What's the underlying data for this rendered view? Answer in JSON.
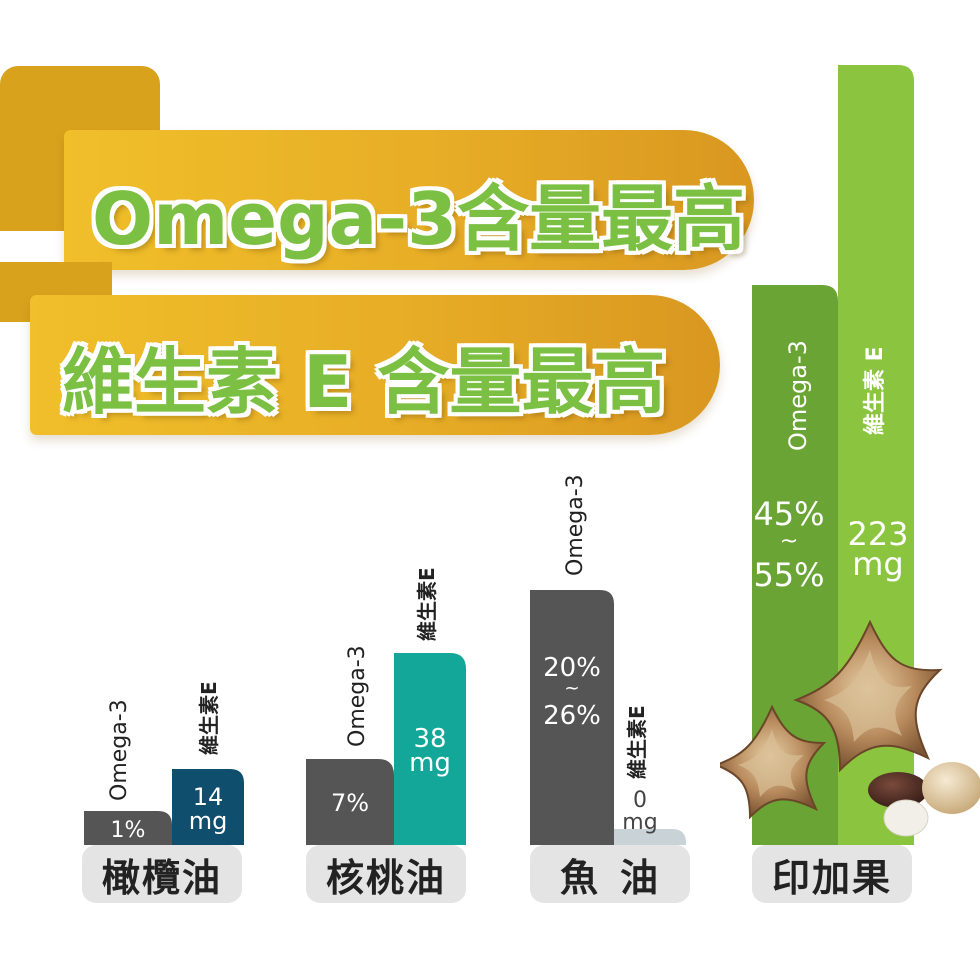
{
  "headline": {
    "line1": "Omega-3含量最高",
    "line2": "維生素 E 含量最高"
  },
  "colors": {
    "omega3_gray": "#555555",
    "olive_vitE": "#0f4e6c",
    "walnut_vitE": "#13a79a",
    "fish_vitE": "#c9d2d6",
    "sacha_omega3": "#6aa434",
    "sacha_vitE": "#8bc53f",
    "ribbon": "#e8b026",
    "title_green": "#7bc043"
  },
  "chart_data": {
    "type": "bar",
    "categories": [
      "橄欖油",
      "核桃油",
      "魚油",
      "印加果"
    ],
    "category_labels": [
      "橄欖油",
      "核桃油",
      "魚    油",
      "印加果"
    ],
    "series": [
      {
        "name": "Omega-3",
        "unit": "%",
        "values": [
          1,
          7,
          23,
          50
        ],
        "ranges": [
          [
            1,
            1
          ],
          [
            7,
            7
          ],
          [
            20,
            26
          ],
          [
            45,
            55
          ]
        ],
        "labels": [
          "1%",
          "7%",
          "20%\n~\n26%",
          "45%\n~\n55%"
        ]
      },
      {
        "name": "維生素E",
        "unit": "mg",
        "values": [
          14,
          38,
          0,
          223
        ],
        "labels": [
          "14\nmg",
          "38\nmg",
          "0\nmg",
          "223\nmg"
        ]
      }
    ],
    "series_labels": {
      "omega3": "Omega-3",
      "vitE_short": "維生素E",
      "vitE_spaced": "維生素 E"
    }
  }
}
